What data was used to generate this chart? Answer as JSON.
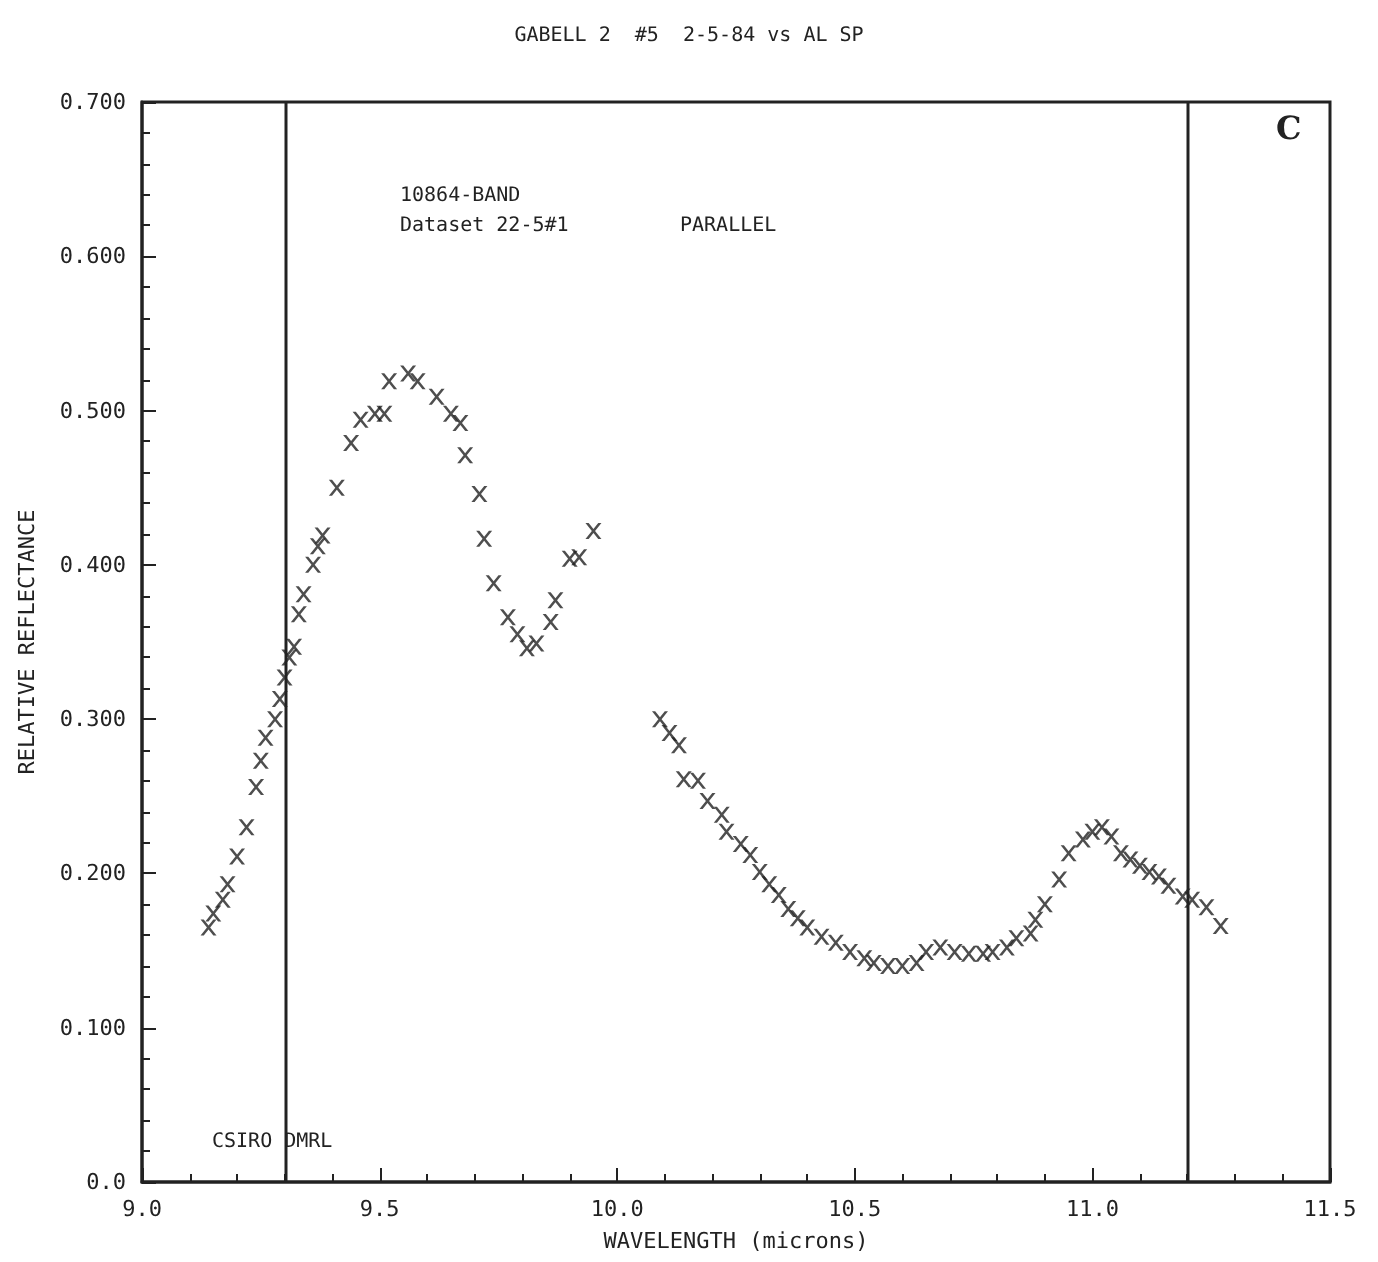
{
  "chart_data": {
    "type": "scatter",
    "title": "GABELL 2  #5  2-5-84 vs AL SP",
    "xlabel": "WAVELENGTH (microns)",
    "ylabel": "RELATIVE REFLECTANCE",
    "annotations": [
      "10864-BAND",
      "Dataset 22-5#1",
      "PARALLEL",
      "CSIRO DMRL",
      "C"
    ],
    "series": [
      {
        "color": "#222222",
        "x": [
          9.14,
          9.15,
          9.17,
          9.18,
          9.2,
          9.22,
          9.24,
          9.25,
          9.26,
          9.28,
          9.29,
          9.3,
          9.31,
          9.32,
          9.33,
          9.34,
          9.36,
          9.37,
          9.38,
          9.41,
          9.44,
          9.46,
          9.49,
          9.51,
          9.52,
          9.56,
          9.58,
          9.62,
          9.65,
          9.67,
          9.68,
          9.71,
          9.72,
          9.74,
          9.77,
          9.79,
          9.81,
          9.83,
          9.86,
          9.87,
          9.9,
          9.92,
          9.95,
          10.09,
          10.11,
          10.13,
          10.14,
          10.17,
          10.19,
          10.22,
          10.23,
          10.26,
          10.28,
          10.3,
          10.32,
          10.34,
          10.36,
          10.38,
          10.4,
          10.43,
          10.46,
          10.49,
          10.52,
          10.54,
          10.57,
          10.6,
          10.63,
          10.65,
          10.68,
          10.71,
          10.74,
          10.77,
          10.79,
          10.82,
          10.84,
          10.87,
          10.88,
          10.9,
          10.93,
          10.95,
          10.98,
          11.0,
          11.02,
          11.04,
          11.06,
          11.08,
          11.1,
          11.12,
          11.14,
          11.16,
          11.19,
          11.21,
          11.24,
          11.27
        ],
        "values": [
          0.165,
          0.174,
          0.183,
          0.193,
          0.211,
          0.23,
          0.256,
          0.273,
          0.288,
          0.3,
          0.313,
          0.327,
          0.34,
          0.347,
          0.368,
          0.381,
          0.4,
          0.412,
          0.419,
          0.45,
          0.479,
          0.494,
          0.498,
          0.498,
          0.519,
          0.524,
          0.519,
          0.509,
          0.498,
          0.492,
          0.471,
          0.446,
          0.417,
          0.388,
          0.366,
          0.355,
          0.346,
          0.349,
          0.363,
          0.377,
          0.404,
          0.405,
          0.422,
          0.3,
          0.291,
          0.283,
          0.261,
          0.26,
          0.247,
          0.238,
          0.227,
          0.219,
          0.212,
          0.201,
          0.193,
          0.186,
          0.177,
          0.171,
          0.165,
          0.159,
          0.155,
          0.149,
          0.145,
          0.142,
          0.14,
          0.14,
          0.142,
          0.149,
          0.152,
          0.149,
          0.148,
          0.148,
          0.149,
          0.152,
          0.158,
          0.161,
          0.17,
          0.18,
          0.196,
          0.213,
          0.222,
          0.227,
          0.23,
          0.224,
          0.213,
          0.209,
          0.205,
          0.201,
          0.198,
          0.192,
          0.185,
          0.183,
          0.178,
          0.166
        ]
      }
    ],
    "xlim": [
      9.0,
      11.5
    ],
    "xticks": [
      {
        "value": 9.0,
        "label": "9.0"
      },
      {
        "value": 9.5,
        "label": "9.5"
      },
      {
        "value": 10.0,
        "label": "10.0"
      },
      {
        "value": 10.5,
        "label": "10.5"
      },
      {
        "value": 11.0,
        "label": "11.0"
      },
      {
        "value": 11.5,
        "label": "11.5"
      }
    ],
    "ylim": [
      0,
      0.7
    ],
    "yticks": [
      {
        "value": 0,
        "label": "0.0"
      },
      {
        "value": 0.1,
        "label": "0.100"
      },
      {
        "value": 0.2,
        "label": "0.200"
      },
      {
        "value": 0.3,
        "label": "0.300"
      },
      {
        "value": 0.4,
        "label": "0.400"
      },
      {
        "value": 0.5,
        "label": "0.500"
      },
      {
        "value": 0.6,
        "label": "0.600"
      },
      {
        "value": 0.7,
        "label": "0.700"
      }
    ],
    "ref_lines": [
      {
        "axis": "x",
        "value": 9.3,
        "color": "#222222"
      },
      {
        "axis": "x",
        "value": 11.2,
        "color": "#222222"
      }
    ],
    "marker": "cross",
    "grid": false
  }
}
